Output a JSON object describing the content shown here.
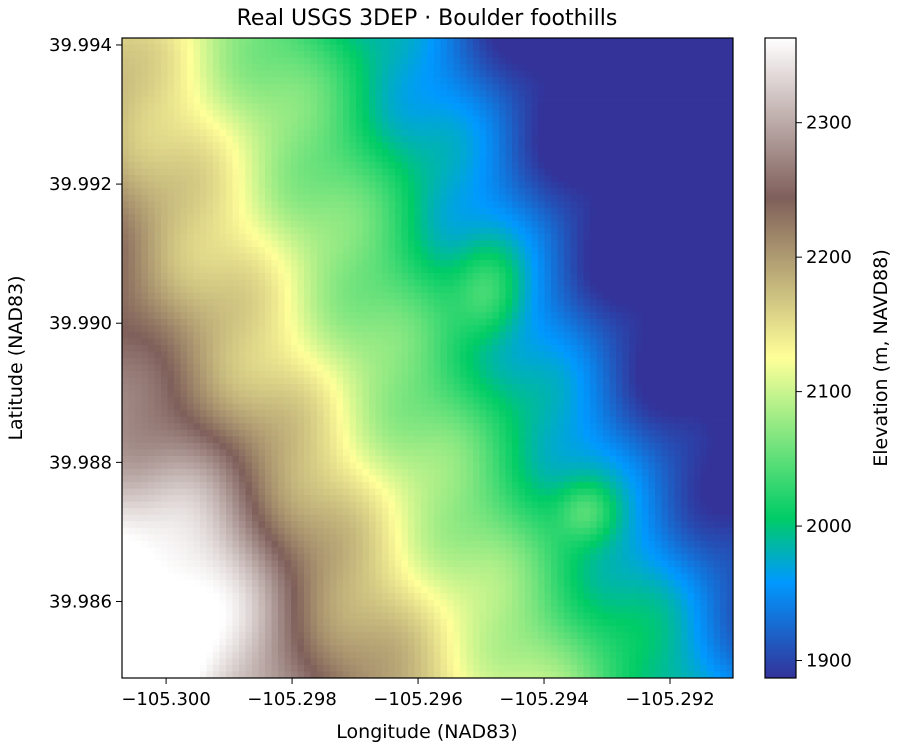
{
  "figure": {
    "title": "Real USGS 3DEP · Boulder foothills"
  },
  "chart_data": {
    "type": "heatmap",
    "title": "Real USGS 3DEP · Boulder foothills",
    "xlabel": "Longitude (NAD83)",
    "ylabel": "Latitude (NAD83)",
    "xlim": [
      -105.3007,
      -105.291
    ],
    "ylim": [
      39.9849,
      39.9941
    ],
    "xticks": [
      -105.3,
      -105.298,
      -105.296,
      -105.294,
      -105.292
    ],
    "xtick_labels": [
      "−105.300",
      "−105.298",
      "−105.296",
      "−105.294",
      "−105.292"
    ],
    "yticks": [
      39.986,
      39.988,
      39.99,
      39.992,
      39.994
    ],
    "ytick_labels": [
      "39.986",
      "39.988",
      "39.990",
      "39.992",
      "39.994"
    ],
    "colormap": "terrain",
    "colorbar": {
      "label": "Elevation (m, NAVD88)",
      "range": [
        1887,
        2363
      ],
      "ticks": [
        1900,
        2000,
        2100,
        2200,
        2300
      ],
      "tick_labels": [
        "1900",
        "2000",
        "2100",
        "2200",
        "2300"
      ],
      "stops": [
        {
          "v": 0.0,
          "color": "#333399"
        },
        {
          "v": 0.15,
          "color": "#0099ff"
        },
        {
          "v": 0.25,
          "color": "#00cc66"
        },
        {
          "v": 0.5,
          "color": "#ffff99"
        },
        {
          "v": 0.75,
          "color": "#7f5f5a"
        },
        {
          "v": 1.0,
          "color": "#ffffff"
        }
      ]
    }
  }
}
